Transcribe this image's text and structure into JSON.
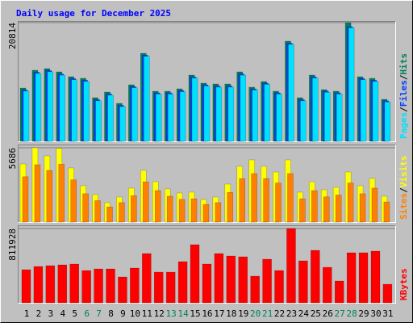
{
  "chart_data": [
    {
      "type": "bar",
      "title": "Daily usage for December 2025",
      "legend_separator": "/",
      "ylim": [
        0,
        20814
      ],
      "yticks": [
        20814
      ],
      "series": [
        {
          "name": "Pages",
          "color": "#00E0FF",
          "values": [
            8800,
            11900,
            12200,
            11600,
            10800,
            10500,
            7100,
            8100,
            6100,
            9400,
            14900,
            8300,
            8300,
            8700,
            11100,
            9700,
            9500,
            9500,
            11600,
            9000,
            10000,
            8300,
            17000,
            7100,
            11100,
            8600,
            8300,
            19900,
            10800,
            10500,
            6900
          ]
        },
        {
          "name": "Files",
          "color": "#0040FF",
          "values": [
            9000,
            12100,
            12400,
            11800,
            11000,
            10700,
            7300,
            8300,
            6300,
            9600,
            15100,
            8500,
            8500,
            8900,
            11300,
            9900,
            9700,
            9700,
            11800,
            9200,
            10200,
            8500,
            17200,
            7300,
            11300,
            8800,
            8500,
            20100,
            11000,
            10700,
            7100
          ]
        },
        {
          "name": "Hits",
          "color": "#00805C",
          "values": [
            9340,
            12460,
            12744,
            12178,
            11328,
            11045,
            7646,
            8638,
            6655,
            9912,
            15434,
            8779,
            8779,
            9204,
            11611,
            10195,
            10054,
            10054,
            12178,
            9487,
            10478,
            8779,
            17558,
            7646,
            11611,
            9062,
            8779,
            20814,
            11328,
            11045,
            7363
          ]
        }
      ]
    },
    {
      "type": "bar",
      "legend_separator": "/",
      "ylim": [
        0,
        5686
      ],
      "yticks": [
        5686
      ],
      "series": [
        {
          "name": "Sites",
          "color": "#FF8000",
          "values": [
            3470,
            4390,
            3950,
            4430,
            3230,
            2170,
            1640,
            1160,
            1490,
            2020,
            3080,
            2410,
            1980,
            1740,
            1780,
            1350,
            1490,
            2270,
            3330,
            3710,
            3330,
            2990,
            3710,
            1780,
            2410,
            1930,
            2070,
            2990,
            2170,
            2600,
            1540
          ]
        },
        {
          "name": "Visits",
          "color": "#FFFF00",
          "values": [
            4450,
            5686,
            5068,
            5650,
            4141,
            2781,
            2101,
            1483,
            1916,
            2596,
            3955,
            3090,
            2534,
            2225,
            2287,
            1730,
            1916,
            2905,
            4264,
            4759,
            4264,
            3832,
            4759,
            2287,
            3090,
            2472,
            2657,
            3832,
            2781,
            3337,
            1978
          ]
        }
      ]
    },
    {
      "type": "bar",
      "ylim": [
        0,
        811928
      ],
      "yticks": [
        811928
      ],
      "categories": [
        "1",
        "2",
        "3",
        "4",
        "5",
        "6",
        "7",
        "8",
        "9",
        "10",
        "11",
        "12",
        "13",
        "14",
        "15",
        "16",
        "17",
        "18",
        "19",
        "20",
        "21",
        "22",
        "23",
        "24",
        "25",
        "26",
        "27",
        "28",
        "29",
        "30",
        "31"
      ],
      "category_colors": [
        "#000",
        "#000",
        "#000",
        "#000",
        "#000",
        "#00805C",
        "#00805C",
        "#000",
        "#000",
        "#000",
        "#000",
        "#000",
        "#00805C",
        "#00805C",
        "#000",
        "#000",
        "#000",
        "#000",
        "#000",
        "#00805C",
        "#00805C",
        "#000",
        "#000",
        "#000",
        "#000",
        "#000",
        "#00805C",
        "#00805C",
        "#000",
        "#000",
        "#000"
      ],
      "series": [
        {
          "name": "KBytes",
          "color": "#FF0000",
          "values": [
            361825,
            397125,
            405950,
            414775,
            423600,
            353000,
            370650,
            370650,
            282400,
            379475,
            538325,
            335350,
            335350,
            450075,
            635400,
            423600,
            538325,
            511850,
            503025,
            291225,
            476550,
            353000,
            811928,
            458900,
            573625,
            388300,
            238275,
            547150,
            547150,
            564800,
            202975
          ]
        }
      ]
    }
  ]
}
